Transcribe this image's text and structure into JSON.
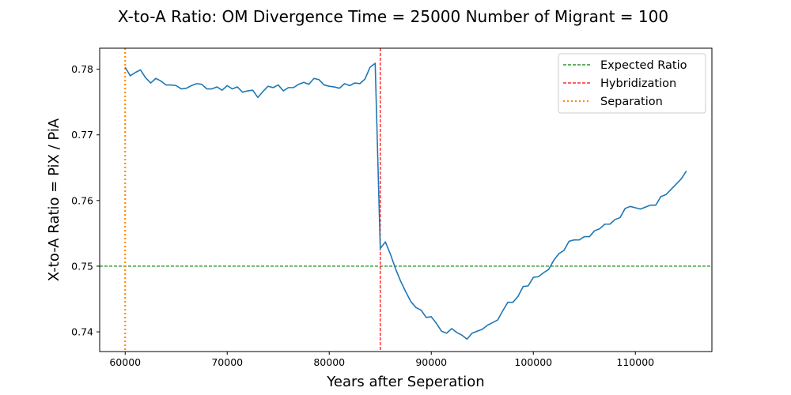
{
  "chart_data": {
    "type": "line",
    "title": "X-to-A Ratio: OM Divergence Time = 25000  Number of Migrant = 100",
    "xlabel": "Years after Seperation",
    "ylabel": "X-to-A Ratio = PiX / PiA",
    "xlim": [
      57500,
      117500
    ],
    "ylim": [
      0.737,
      0.7832
    ],
    "xticks": [
      60000,
      70000,
      80000,
      90000,
      100000,
      110000
    ],
    "xtick_labels": [
      "60000",
      "70000",
      "80000",
      "90000",
      "100000",
      "110000"
    ],
    "yticks": [
      0.74,
      0.75,
      0.76,
      0.77,
      0.78
    ],
    "ytick_labels": [
      "0.74",
      "0.75",
      "0.76",
      "0.77",
      "0.78"
    ],
    "grid": false,
    "legend_position": "top-right",
    "legend": [
      {
        "label": "Expected Ratio",
        "color": "#008000",
        "style": "dashed"
      },
      {
        "label": "Hybridization",
        "color": "#ff0000",
        "style": "dashed"
      },
      {
        "label": "Separation",
        "color": "#ff8c00",
        "style": "dotted"
      }
    ],
    "reference_lines": {
      "expected_ratio": {
        "axis": "y",
        "value": 0.75,
        "color": "#008000"
      },
      "hybridization": {
        "axis": "x",
        "value": 85000,
        "color": "#ff0000"
      },
      "separation": {
        "axis": "x",
        "value": 60000,
        "color": "#ff8c00"
      }
    },
    "series": [
      {
        "color": "#1f77b4",
        "x": [
          60000,
          60500,
          61000,
          61500,
          62000,
          62500,
          63000,
          63500,
          64000,
          64500,
          65000,
          65500,
          66000,
          66500,
          67000,
          67500,
          68000,
          68500,
          69000,
          69500,
          70000,
          70500,
          71000,
          71500,
          72000,
          72500,
          73000,
          73500,
          74000,
          74500,
          75000,
          75500,
          76000,
          76500,
          77000,
          77500,
          78000,
          78500,
          79000,
          79500,
          80000,
          80500,
          81000,
          81500,
          82000,
          82500,
          83000,
          83500,
          84000,
          84500,
          85000,
          85500,
          86000,
          86500,
          87000,
          87500,
          88000,
          88500,
          89000,
          89500,
          90000,
          90500,
          91000,
          91500,
          92000,
          92500,
          93000,
          93500,
          94000,
          94500,
          95000,
          95500,
          96000,
          96500,
          97000,
          97500,
          98000,
          98500,
          99000,
          99500,
          100000,
          100500,
          101000,
          101500,
          102000,
          102500,
          103000,
          103500,
          104000,
          104500,
          105000,
          105500,
          106000,
          106500,
          107000,
          107500,
          108000,
          108500,
          109000,
          109500,
          110000,
          110500,
          111000,
          111500,
          112000,
          112500,
          113000,
          113500,
          114000,
          114500,
          115000
        ],
        "y": [
          0.7803,
          0.779,
          0.7795,
          0.7799,
          0.7787,
          0.7779,
          0.7786,
          0.7782,
          0.7776,
          0.7776,
          0.7775,
          0.777,
          0.7771,
          0.7775,
          0.7778,
          0.7777,
          0.777,
          0.777,
          0.7773,
          0.7768,
          0.7775,
          0.777,
          0.7773,
          0.7765,
          0.7767,
          0.7768,
          0.7757,
          0.7766,
          0.7774,
          0.7772,
          0.7776,
          0.7767,
          0.7772,
          0.7772,
          0.7777,
          0.778,
          0.7777,
          0.7786,
          0.7784,
          0.7776,
          0.7774,
          0.7773,
          0.7771,
          0.7778,
          0.7775,
          0.7779,
          0.7778,
          0.7785,
          0.7803,
          0.7809,
          0.7527,
          0.7537,
          0.7518,
          0.7496,
          0.7477,
          0.7461,
          0.7446,
          0.7437,
          0.7433,
          0.7422,
          0.7423,
          0.7413,
          0.7401,
          0.7398,
          0.7405,
          0.7399,
          0.7395,
          0.7389,
          0.7398,
          0.7401,
          0.7404,
          0.741,
          0.7414,
          0.7418,
          0.7432,
          0.7445,
          0.7445,
          0.7454,
          0.7469,
          0.747,
          0.7483,
          0.7484,
          0.749,
          0.7495,
          0.7509,
          0.7519,
          0.7524,
          0.7538,
          0.754,
          0.754,
          0.7545,
          0.7545,
          0.7554,
          0.7557,
          0.7564,
          0.7564,
          0.7571,
          0.7574,
          0.7588,
          0.7591,
          0.7589,
          0.7587,
          0.759,
          0.7593,
          0.7593,
          0.7606,
          0.7609,
          0.7617,
          0.7625,
          0.7633,
          0.7645
        ]
      }
    ]
  }
}
